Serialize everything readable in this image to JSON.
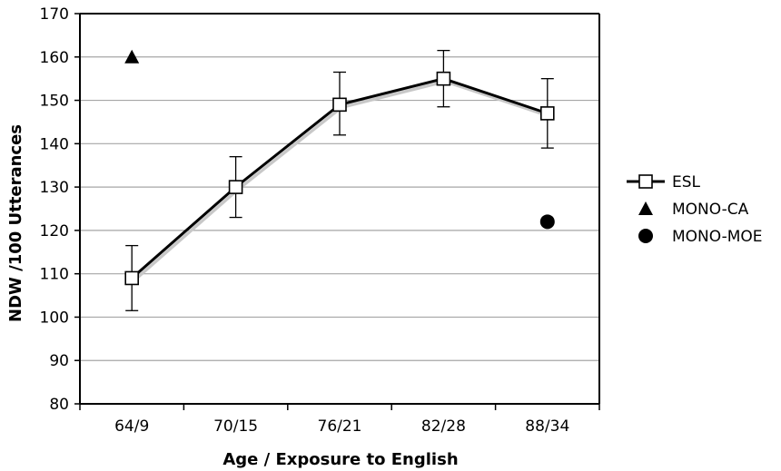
{
  "chart_data": {
    "type": "line",
    "title": "",
    "xlabel": "Age / Exposure to English",
    "ylabel": "NDW /100 Utterances",
    "categories": [
      "64/9",
      "70/15",
      "76/21",
      "82/28",
      "88/34"
    ],
    "ylim": [
      80,
      170
    ],
    "yticks": [
      80,
      90,
      100,
      110,
      120,
      130,
      140,
      150,
      160,
      170
    ],
    "grid": "horizontal",
    "legend_position": "right",
    "series": [
      {
        "name": "ESL",
        "marker": "open-square",
        "connected": true,
        "color": "#000000",
        "values": [
          109,
          130,
          149,
          155,
          147
        ],
        "error_low": [
          101.5,
          123,
          142,
          148.5,
          139
        ],
        "error_high": [
          116.5,
          137,
          156.5,
          161.5,
          155
        ]
      },
      {
        "name": "MONO-CA",
        "marker": "filled-triangle",
        "connected": false,
        "color": "#000000",
        "points": [
          {
            "category": "64/9",
            "value": 160
          }
        ]
      },
      {
        "name": "MONO-MOE",
        "marker": "filled-circle",
        "connected": false,
        "color": "#000000",
        "points": [
          {
            "category": "88/34",
            "value": 122
          }
        ]
      }
    ]
  }
}
